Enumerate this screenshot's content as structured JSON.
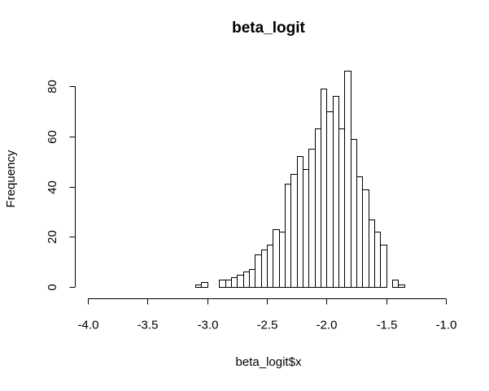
{
  "chart_data": {
    "type": "bar",
    "title": "beta_logit",
    "xlabel": "beta_logit$x",
    "ylabel": "Frequency",
    "xlim": [
      -4.0,
      -1.0
    ],
    "ylim": [
      0,
      85
    ],
    "bin_width": 0.05,
    "x_ticks": [
      -4.0,
      -3.5,
      -3.0,
      -2.5,
      -2.0,
      -1.5,
      -1.0
    ],
    "x_tick_labels": [
      "-4.0",
      "-3.5",
      "-3.0",
      "-2.5",
      "-2.0",
      "-1.5",
      "-1.0"
    ],
    "y_ticks": [
      0,
      20,
      40,
      60,
      80
    ],
    "y_tick_labels": [
      "0",
      "20",
      "40",
      "60",
      "80"
    ],
    "bins_start": [
      -3.1,
      -3.05,
      -3.0,
      -2.95,
      -2.9,
      -2.85,
      -2.8,
      -2.75,
      -2.7,
      -2.65,
      -2.6,
      -2.55,
      -2.5,
      -2.45,
      -2.4,
      -2.35,
      -2.3,
      -2.25,
      -2.2,
      -2.15,
      -2.1,
      -2.05,
      -2.0,
      -1.95,
      -1.9,
      -1.85,
      -1.8,
      -1.75,
      -1.7,
      -1.65,
      -1.6,
      -1.55,
      -1.5,
      -1.45,
      -1.4
    ],
    "values": [
      1,
      2,
      0,
      0,
      3,
      3,
      4,
      5,
      6,
      7,
      13,
      15,
      17,
      23,
      22,
      41,
      45,
      52,
      47,
      55,
      63,
      79,
      70,
      76,
      63,
      86,
      59,
      44,
      39,
      27,
      22,
      17,
      0,
      3,
      1
    ],
    "grid": false,
    "colors": {
      "bar_fill": "#ffffff",
      "bar_stroke": "#000000",
      "text": "#000000"
    }
  }
}
